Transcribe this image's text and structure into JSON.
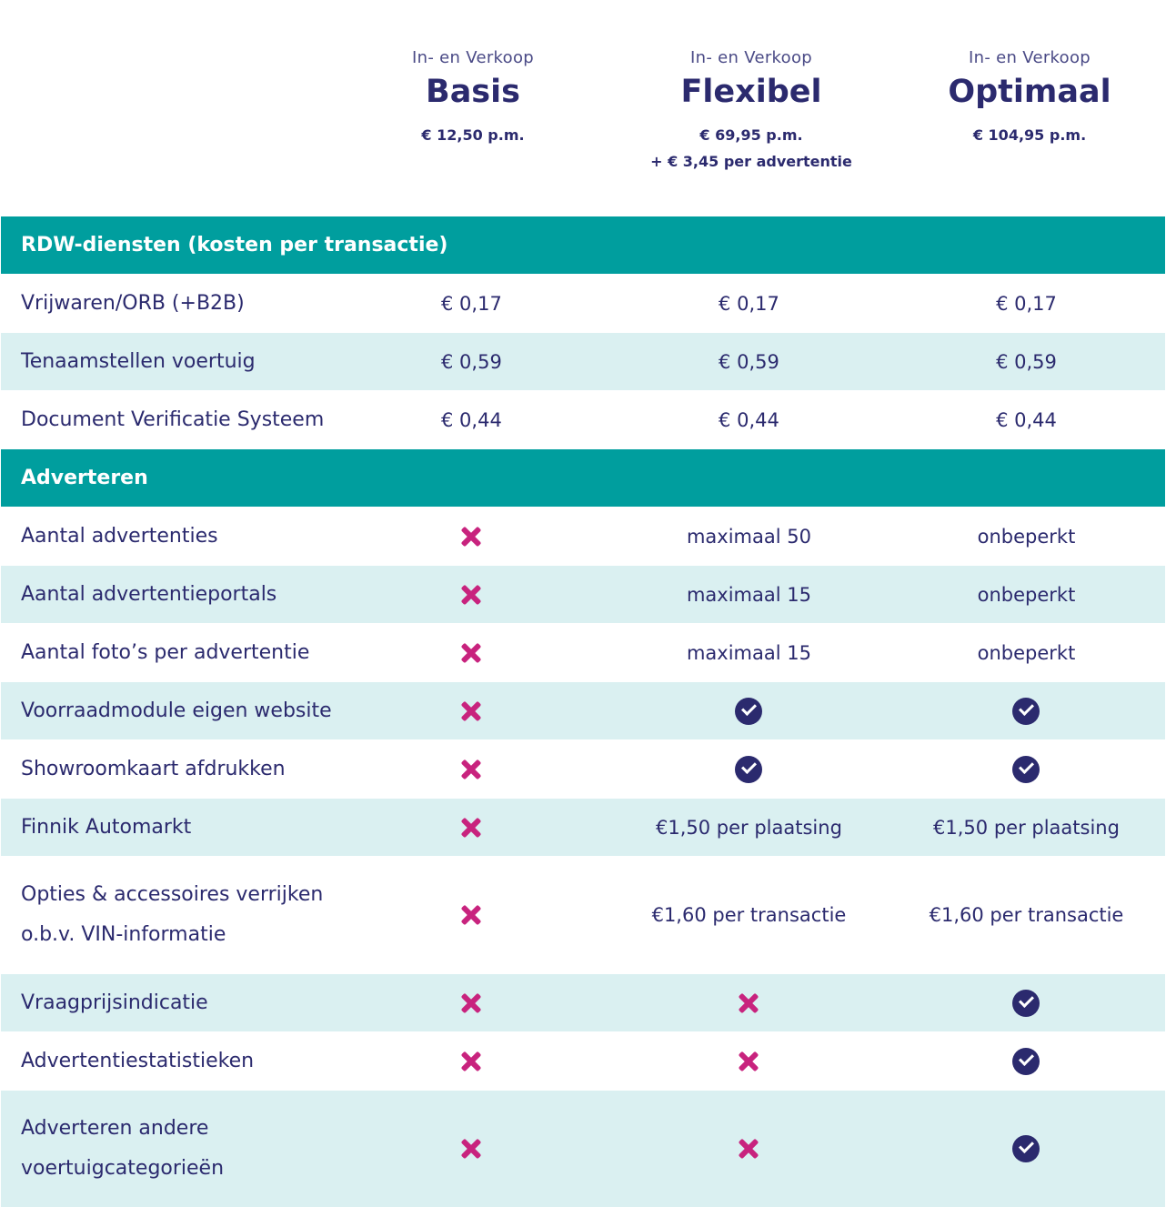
{
  "plans": [
    {
      "sub": "In- en Verkoop",
      "name": "Basis",
      "price": "€ 12,50 p.m.",
      "price_extra": ""
    },
    {
      "sub": "In- en Verkoop",
      "name": "Flexibel",
      "price": "€ 69,95 p.m.",
      "price_extra": "+ € 3,45 per advertentie"
    },
    {
      "sub": "In- en Verkoop",
      "name": "Optimaal",
      "price": "€ 104,95 p.m.",
      "price_extra": ""
    }
  ],
  "sections": {
    "rdw": "RDW-diensten (kosten per transactie)",
    "adverteren": "Adverteren"
  },
  "rows": [
    {
      "label": "Vrijwaren/ORB (+B2B)",
      "cells": [
        "€ 0,17",
        "€ 0,17",
        "€ 0,17"
      ]
    },
    {
      "label": "Tenaamstellen voertuig",
      "cells": [
        "€ 0,59",
        "€ 0,59",
        "€ 0,59"
      ]
    },
    {
      "label": "Document Verificatie Systeem",
      "cells": [
        "€ 0,44",
        "€ 0,44",
        "€ 0,44"
      ]
    },
    {
      "label": "Aantal advertenties",
      "cells": [
        "cross",
        "maximaal 50",
        "onbeperkt"
      ]
    },
    {
      "label": "Aantal advertentieportals",
      "cells": [
        "cross",
        "maximaal 15",
        "onbeperkt"
      ]
    },
    {
      "label": "Aantal foto’s per advertentie",
      "cells": [
        "cross",
        "maximaal 15",
        "onbeperkt"
      ]
    },
    {
      "label": "Voorraadmodule eigen website",
      "cells": [
        "cross",
        "check",
        "check"
      ]
    },
    {
      "label": "Showroomkaart afdrukken",
      "cells": [
        "cross",
        "check",
        "check"
      ]
    },
    {
      "label": "Finnik Automarkt",
      "cells": [
        "cross",
        "€1,50 per plaatsing",
        "€1,50 per plaatsing"
      ]
    },
    {
      "label": "Opties & accessoires verrijken o.b.v. VIN-informatie",
      "cells": [
        "cross",
        "€1,60 per transactie",
        "€1,60 per transactie"
      ]
    },
    {
      "label": "Vraagprijsindicatie",
      "cells": [
        "cross",
        "cross",
        "check"
      ]
    },
    {
      "label": "Advertentiestatistieken",
      "cells": [
        "cross",
        "cross",
        "check"
      ]
    },
    {
      "label": "Adverteren andere voertuigcategorieën",
      "cells": [
        "cross",
        "cross",
        "check"
      ]
    }
  ],
  "icons": {
    "cross": "cross-icon",
    "check": "check-circle-icon"
  },
  "colors": {
    "section": "#009e9e",
    "stripe": "#daf0f1",
    "text": "#2b2a6e",
    "cross": "#c8237e"
  }
}
